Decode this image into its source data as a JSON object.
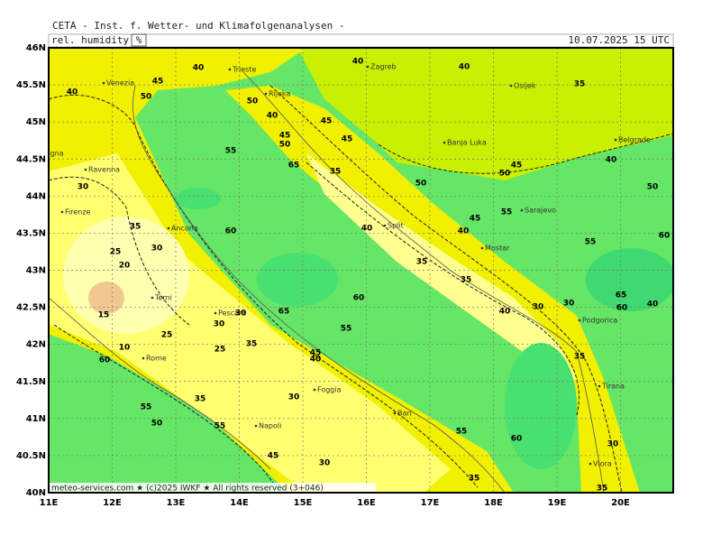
{
  "header": {
    "title": "CETA - Inst. f. Wetter- und Klimafolgenanalysen -",
    "parameter": "rel. humidity",
    "unit": "%",
    "valid_time": "10.07.2025 15 UTC"
  },
  "axes": {
    "longitude": [
      "11E",
      "12E",
      "13E",
      "14E",
      "15E",
      "16E",
      "17E",
      "18E",
      "19E",
      "20E"
    ],
    "latitude": [
      "46N",
      "45.5N",
      "45N",
      "44.5N",
      "44N",
      "43.5N",
      "43N",
      "42.5N",
      "42N",
      "41.5N",
      "41N",
      "40.5N",
      "40N"
    ]
  },
  "cities": [
    "Venezia",
    "Trieste",
    "Zagreb",
    "Osijek",
    "Rijeka",
    "Bologna",
    "Ravenna",
    "Banja Luka",
    "Belgrade",
    "Firenze",
    "Split",
    "Sarajevo",
    "Ancona",
    "Mostar",
    "Terni",
    "Pescara",
    "Podgorica",
    "Rome",
    "Foggia",
    "Napoli",
    "Bari",
    "Tirana",
    "Vlora"
  ],
  "contour_labels": [
    40,
    45,
    50,
    40,
    50,
    40,
    45,
    45,
    45,
    50,
    55,
    65,
    35,
    40,
    40,
    35,
    50,
    45,
    50,
    45,
    40,
    55,
    55,
    60,
    50,
    40,
    30,
    35,
    25,
    20,
    30,
    15,
    25,
    30,
    30,
    25,
    35,
    60,
    65,
    60,
    55,
    45,
    40,
    35,
    55,
    50,
    60,
    10,
    55,
    45,
    30,
    30,
    40,
    35,
    35,
    40,
    30,
    30,
    65,
    40,
    60,
    35,
    60,
    55,
    30,
    35,
    35
  ],
  "footer": "meteo-services.com ★ (c)2025 IWKF ★ All rights reserved (3+046)"
}
